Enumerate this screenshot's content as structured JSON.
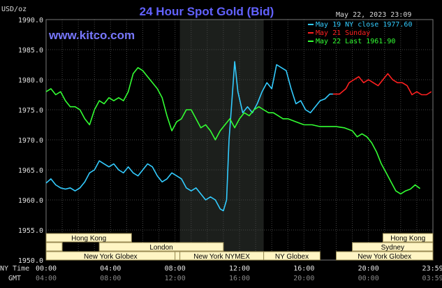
{
  "chart_data": {
    "type": "line",
    "title": "24 Hour Spot Gold (Bid)",
    "site": "www.kitco.com",
    "date": "May 22, 2023 23:09",
    "ylabel": "USD/oz",
    "ylim": [
      1950.0,
      1990.0
    ],
    "y_ticks": [
      "1990.0",
      "1985.0",
      "1980.0",
      "1975.0",
      "1970.0",
      "1965.0",
      "1960.0",
      "1955.0",
      "1950.0"
    ],
    "xlim": [
      0,
      24
    ],
    "grid": true,
    "legend_position": "top-right",
    "x_ticks_ny": [
      "00:00",
      "04:00",
      "08:00",
      "12:00",
      "16:00",
      "20:00",
      "23:59"
    ],
    "x_ticks_gmt": [
      "04:00",
      "08:00",
      "12:00",
      "16:00",
      "20:00",
      "00:00",
      "03:59"
    ],
    "axis_labels": {
      "ny": "NY Time",
      "gmt": "GMT"
    },
    "legend": [
      {
        "label": "May 19 NY close 1977.60",
        "color": "#33ccff"
      },
      {
        "label": "May 21 Sunday",
        "color": "#ff2020"
      },
      {
        "label": "May 22 Last 1961.90",
        "color": "#33ff33"
      }
    ],
    "series": [
      {
        "name": "May 19 NY close 1977.60",
        "color": "#33ccff",
        "x": [
          0,
          0.3,
          0.6,
          0.9,
          1.2,
          1.5,
          1.8,
          2.1,
          2.4,
          2.7,
          3.0,
          3.3,
          3.6,
          3.9,
          4.2,
          4.5,
          4.8,
          5.1,
          5.4,
          5.7,
          6.0,
          6.3,
          6.6,
          6.9,
          7.2,
          7.5,
          7.8,
          8.1,
          8.4,
          8.7,
          9.0,
          9.3,
          9.6,
          9.9,
          10.2,
          10.5,
          10.8,
          11.0,
          11.2,
          11.35,
          11.5,
          11.7,
          11.9,
          12.2,
          12.5,
          12.8,
          13.1,
          13.4,
          13.7,
          14.0,
          14.3,
          14.6,
          14.9,
          15.2,
          15.5,
          15.8,
          16.1,
          16.4,
          16.7,
          17.0,
          17.3,
          17.6,
          17.8
        ],
        "y": [
          1962.8,
          1963.5,
          1962.5,
          1962.0,
          1961.8,
          1962.0,
          1961.5,
          1962.0,
          1963.0,
          1964.5,
          1965.0,
          1966.5,
          1966.0,
          1965.5,
          1966.0,
          1965.0,
          1964.5,
          1965.5,
          1964.5,
          1964.0,
          1965.0,
          1966.0,
          1965.5,
          1964.0,
          1963.0,
          1963.5,
          1964.5,
          1964.0,
          1963.5,
          1962.0,
          1961.5,
          1962.0,
          1961.0,
          1960.0,
          1960.5,
          1960.0,
          1958.5,
          1958.2,
          1960.0,
          1970.0,
          1975.5,
          1983.0,
          1978.0,
          1974.5,
          1975.5,
          1974.5,
          1976.0,
          1978.0,
          1979.5,
          1978.5,
          1982.5,
          1982.0,
          1981.5,
          1978.5,
          1976.0,
          1976.5,
          1975.0,
          1974.5,
          1975.5,
          1976.5,
          1976.8,
          1977.6,
          1977.6
        ]
      },
      {
        "name": "May 21 Sunday",
        "color": "#ff2020",
        "x": [
          17.8,
          18.2,
          18.6,
          18.8,
          19.1,
          19.4,
          19.7,
          20.0,
          20.3,
          20.6,
          20.9,
          21.2,
          21.5,
          21.8,
          22.1,
          22.4,
          22.7,
          23.0,
          23.3,
          23.6,
          23.9
        ],
        "y": [
          1977.6,
          1977.6,
          1978.5,
          1979.5,
          1980.0,
          1980.5,
          1979.5,
          1980.0,
          1979.5,
          1979.0,
          1980.0,
          1981.0,
          1980.0,
          1979.5,
          1979.5,
          1979.0,
          1977.5,
          1978.0,
          1977.5,
          1977.5,
          1978.0
        ]
      },
      {
        "name": "May 22 Last 1961.90",
        "color": "#33ff33",
        "x": [
          0,
          0.3,
          0.6,
          0.9,
          1.2,
          1.5,
          1.8,
          2.1,
          2.4,
          2.7,
          3.0,
          3.3,
          3.6,
          3.9,
          4.2,
          4.5,
          4.8,
          5.1,
          5.4,
          5.7,
          6.0,
          6.3,
          6.6,
          6.9,
          7.2,
          7.5,
          7.8,
          8.1,
          8.4,
          8.7,
          9.0,
          9.3,
          9.6,
          9.9,
          10.2,
          10.5,
          10.8,
          11.1,
          11.4,
          11.7,
          12.0,
          12.3,
          12.6,
          12.9,
          13.2,
          13.5,
          13.8,
          14.1,
          14.4,
          14.7,
          15.0,
          15.5,
          16.0,
          16.5,
          17.0,
          17.5,
          18.0,
          18.5,
          19.0,
          19.3,
          19.6,
          19.9,
          20.2,
          20.5,
          20.8,
          21.1,
          21.4,
          21.7,
          22.0,
          22.3,
          22.6,
          22.9,
          23.2
        ],
        "y": [
          1978.0,
          1978.5,
          1977.5,
          1978.0,
          1976.5,
          1975.5,
          1975.5,
          1975.0,
          1973.5,
          1972.5,
          1975.0,
          1976.5,
          1976.0,
          1977.0,
          1976.5,
          1977.0,
          1976.5,
          1978.0,
          1981.0,
          1982.0,
          1981.5,
          1980.5,
          1979.5,
          1978.5,
          1977.0,
          1974.0,
          1971.5,
          1973.0,
          1973.5,
          1975.0,
          1975.0,
          1973.5,
          1972.0,
          1972.5,
          1971.5,
          1970.0,
          1971.5,
          1972.5,
          1973.5,
          1972.0,
          1973.5,
          1974.5,
          1974.0,
          1975.0,
          1975.5,
          1975.0,
          1974.5,
          1974.5,
          1974.0,
          1973.5,
          1973.5,
          1973.0,
          1972.5,
          1972.5,
          1972.2,
          1972.2,
          1972.2,
          1972.0,
          1971.5,
          1970.5,
          1971.0,
          1970.5,
          1969.5,
          1968.0,
          1966.0,
          1964.5,
          1963.0,
          1961.5,
          1961.0,
          1961.5,
          1961.8,
          1962.5,
          1961.9
        ]
      }
    ],
    "sessions": [
      {
        "label": "Hong Kong",
        "start": 0,
        "end": 5.3,
        "row": 0
      },
      {
        "label": "",
        "start": 0,
        "end": 1.0,
        "row": 1
      },
      {
        "label": "London",
        "start": 3.3,
        "end": 11.0,
        "row": 1
      },
      {
        "label": "New York Globex",
        "start": 0,
        "end": 8.0,
        "row": 2
      },
      {
        "label": "",
        "start": 8.0,
        "end": 8.3,
        "row": 2
      },
      {
        "label": "New York NYMEX",
        "start": 8.3,
        "end": 13.5,
        "row": 2
      },
      {
        "label": "NY Globex",
        "start": 13.5,
        "end": 17.0,
        "row": 2
      },
      {
        "label": "Hong Kong",
        "start": 20.9,
        "end": 24,
        "row": 0
      },
      {
        "label": "Sydney",
        "start": 19.0,
        "end": 24,
        "row": 1
      },
      {
        "label": "New York Globex",
        "start": 18.0,
        "end": 24,
        "row": 2
      }
    ],
    "shaded_region": [
      8.3,
      13.5
    ]
  }
}
